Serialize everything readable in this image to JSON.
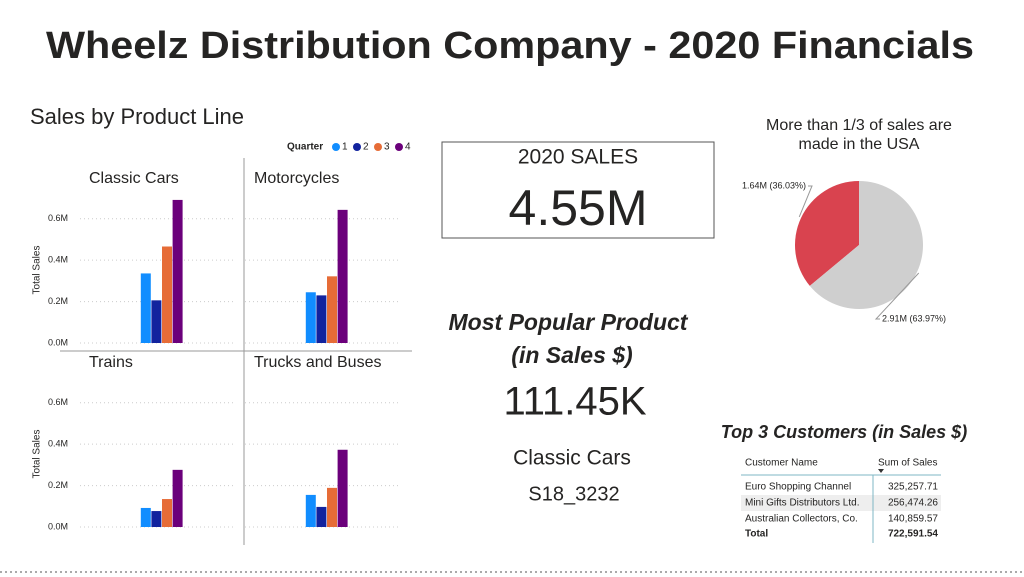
{
  "title": "Wheelz Distribution Company - 2020 Financials",
  "chart_data": [
    {
      "type": "bar",
      "title": "Sales by Product Line",
      "legend_title": "Quarter",
      "y_label": "Total Sales",
      "categories": [
        "Classic Cars",
        "Motorcycles",
        "Trains",
        "Trucks and Buses"
      ],
      "series": [
        {
          "name": "1",
          "color": "#118dff",
          "values": [
            0.336,
            0.245,
            0.092,
            0.155
          ]
        },
        {
          "name": "2",
          "color": "#12239e",
          "values": [
            0.206,
            0.23,
            0.077,
            0.097
          ]
        },
        {
          "name": "3",
          "color": "#e66c37",
          "values": [
            0.466,
            0.322,
            0.135,
            0.189
          ]
        },
        {
          "name": "4",
          "color": "#6b007b",
          "values": [
            0.691,
            0.643,
            0.276,
            0.373
          ]
        }
      ],
      "ylim": [
        0,
        0.85
      ],
      "yticks": [
        {
          "value": 0,
          "label": "0.0M"
        },
        {
          "value": 0.2,
          "label": "0.2M"
        },
        {
          "value": 0.4,
          "label": "0.4M"
        },
        {
          "value": 0.6,
          "label": "0.6M"
        }
      ],
      "grid": true
    },
    {
      "type": "pie",
      "title": [
        "More than 1/3 of sales are",
        "made in the USA"
      ],
      "values": [
        1.64,
        2.91
      ],
      "value_labels": [
        "1.64M (36.03%)",
        "2.91M (63.97%)"
      ],
      "colors": [
        "#d9434f",
        "#cfcfcf"
      ]
    }
  ],
  "kpi": {
    "label": "2020 SALES",
    "value": "4.55M"
  },
  "popular": {
    "title": [
      "Most Popular Product",
      "(in Sales $)"
    ],
    "value": "111.45K",
    "product": "Classic Cars",
    "code": "S18_3232"
  },
  "table": {
    "title": "Top 3 Customers (in Sales $)",
    "columns": [
      "Customer Name",
      "Sum of Sales"
    ],
    "rows": [
      [
        "Euro Shopping Channel",
        "325,257.71"
      ],
      [
        "Mini Gifts Distributors Ltd.",
        "256,474.26"
      ],
      [
        "Australian Collectors, Co.",
        "140,859.57"
      ]
    ],
    "total": [
      "Total",
      "722,591.54"
    ]
  }
}
